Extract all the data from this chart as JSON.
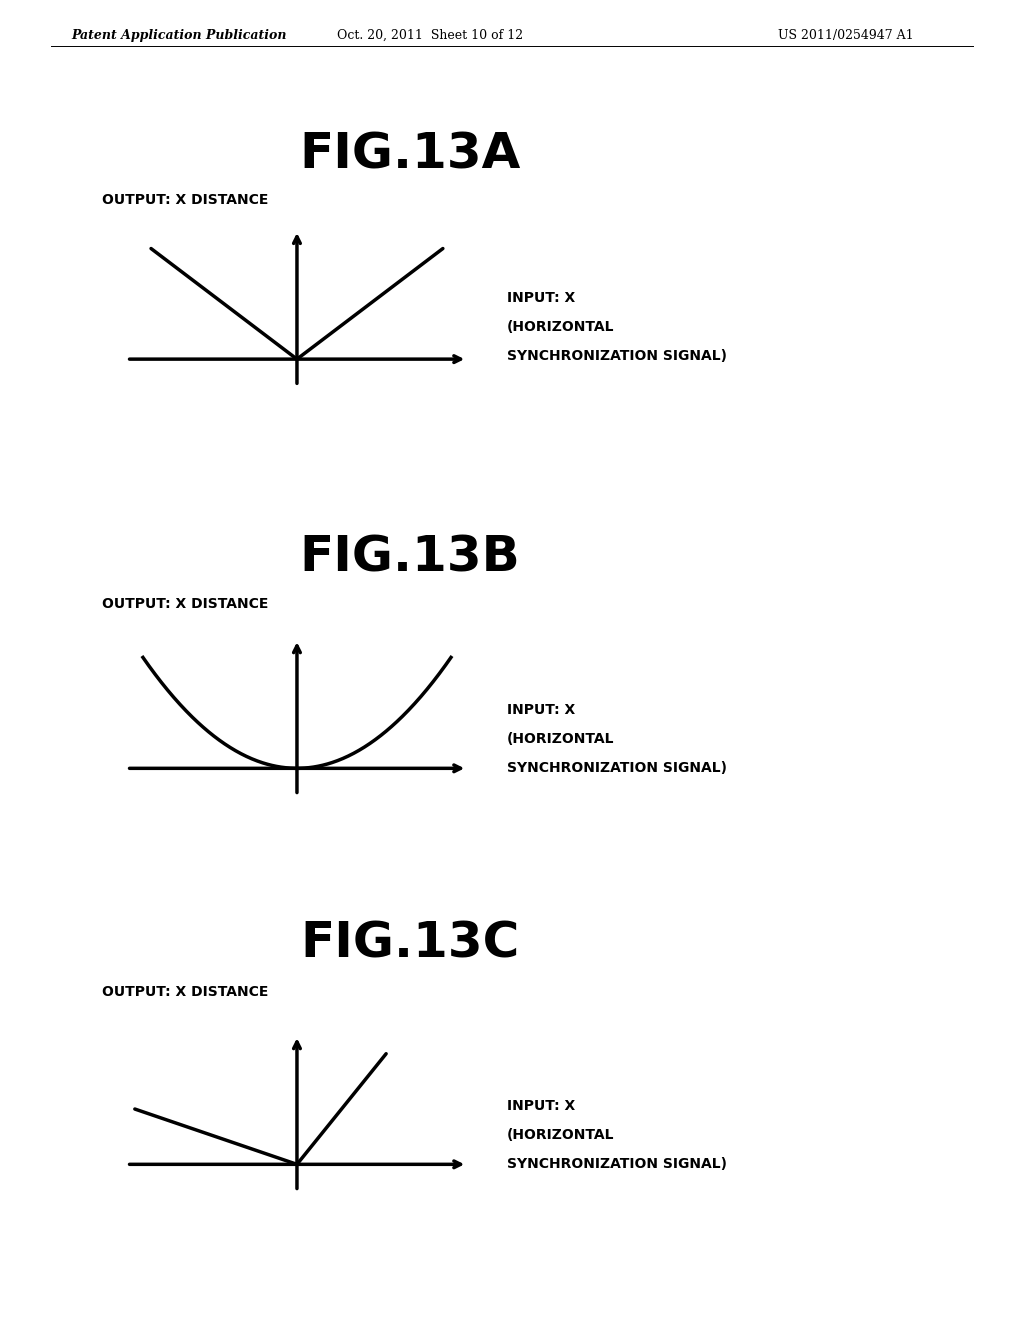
{
  "header_left": "Patent Application Publication",
  "header_mid": "Oct. 20, 2011  Sheet 10 of 12",
  "header_right": "US 2011/0254947 A1",
  "fig_titles": [
    "FIG.13A",
    "FIG.13B",
    "FIG.13C"
  ],
  "ylabel": "OUTPUT: X DISTANCE",
  "xlabel_line1": "INPUT: X",
  "xlabel_line2": "(HORIZONTAL",
  "xlabel_line3": "SYNCHRONIZATION SIGNAL)",
  "bg_color": "#ffffff",
  "line_color": "#000000",
  "text_color": "#000000",
  "lw": 2.5,
  "title_fontsize": 36,
  "label_fontsize": 10,
  "header_fontsize": 9
}
